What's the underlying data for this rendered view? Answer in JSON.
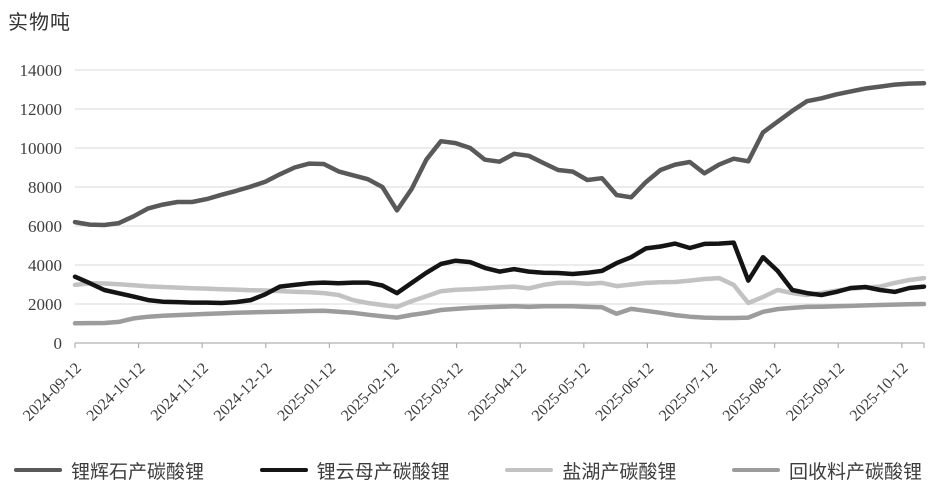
{
  "chart_data": {
    "type": "line",
    "unit_label": "实物吨",
    "grid": "horizontal",
    "legend_position": "bottom",
    "ylim": [
      0,
      14000
    ],
    "y_ticks": [
      0,
      2000,
      4000,
      6000,
      8000,
      10000,
      12000,
      14000
    ],
    "x_tick_labels": [
      "2024-09-12",
      "2024-10-12",
      "2024-11-12",
      "2024-12-12",
      "2025-01-12",
      "2025-02-12",
      "2025-03-12",
      "2025-04-12",
      "2025-05-12",
      "2025-06-12",
      "2025-07-12",
      "2025-08-12",
      "2025-09-12",
      "2025-10-12"
    ],
    "n_points": 59,
    "points_per_month": 4.345,
    "colors": {
      "grid": "#d8d8d8",
      "axis": "#b0b0b0",
      "tick_text": "#3d3d3d"
    },
    "series": [
      {
        "name": "锂辉石产碳酸锂",
        "color": "#595959",
        "values": [
          6200,
          6070,
          6050,
          6150,
          6500,
          6900,
          7100,
          7230,
          7230,
          7380,
          7600,
          7800,
          8020,
          8270,
          8650,
          9000,
          9200,
          9180,
          8800,
          8600,
          8400,
          8000,
          6800,
          7900,
          9400,
          10350,
          10250,
          10000,
          9400,
          9300,
          9700,
          9600,
          9230,
          8870,
          8790,
          8360,
          8450,
          7590,
          7470,
          8250,
          8870,
          9150,
          9280,
          8700,
          9150,
          9450,
          9320,
          10800,
          11350,
          11900,
          12400,
          12550,
          12750,
          12900,
          13050,
          13150,
          13250,
          13300,
          13320
        ]
      },
      {
        "name": "锂云母产碳酸锂",
        "color": "#141414",
        "values": [
          3400,
          3070,
          2720,
          2550,
          2380,
          2200,
          2120,
          2100,
          2070,
          2070,
          2050,
          2100,
          2200,
          2500,
          2890,
          2980,
          3060,
          3100,
          3060,
          3100,
          3100,
          2950,
          2560,
          3080,
          3600,
          4050,
          4220,
          4150,
          3850,
          3660,
          3790,
          3660,
          3600,
          3590,
          3540,
          3600,
          3700,
          4100,
          4400,
          4850,
          4950,
          5100,
          4870,
          5080,
          5100,
          5150,
          3200,
          4400,
          3700,
          2720,
          2560,
          2460,
          2620,
          2820,
          2870,
          2720,
          2620,
          2820,
          2890
        ]
      },
      {
        "name": "盐湖产碳酸锂",
        "color": "#c2c2c2",
        "values": [
          2980,
          3060,
          3050,
          3010,
          2960,
          2900,
          2870,
          2840,
          2810,
          2790,
          2760,
          2740,
          2710,
          2690,
          2660,
          2630,
          2600,
          2560,
          2460,
          2200,
          2050,
          1950,
          1850,
          2150,
          2400,
          2650,
          2730,
          2760,
          2800,
          2850,
          2890,
          2800,
          2980,
          3080,
          3090,
          3030,
          3080,
          2920,
          3000,
          3080,
          3120,
          3130,
          3200,
          3280,
          3330,
          2980,
          2050,
          2360,
          2720,
          2560,
          2460,
          2560,
          2680,
          2790,
          2840,
          2890,
          3080,
          3230,
          3330
        ]
      },
      {
        "name": "回收料产碳酸锂",
        "color": "#9c9c9c",
        "values": [
          1010,
          1020,
          1025,
          1080,
          1260,
          1350,
          1400,
          1430,
          1460,
          1490,
          1520,
          1550,
          1570,
          1590,
          1600,
          1620,
          1640,
          1650,
          1600,
          1550,
          1450,
          1370,
          1300,
          1440,
          1550,
          1690,
          1750,
          1800,
          1830,
          1860,
          1880,
          1850,
          1880,
          1880,
          1880,
          1850,
          1830,
          1500,
          1750,
          1650,
          1550,
          1430,
          1350,
          1300,
          1280,
          1280,
          1300,
          1600,
          1740,
          1800,
          1850,
          1860,
          1880,
          1900,
          1930,
          1950,
          1970,
          1990,
          2000
        ]
      }
    ]
  }
}
